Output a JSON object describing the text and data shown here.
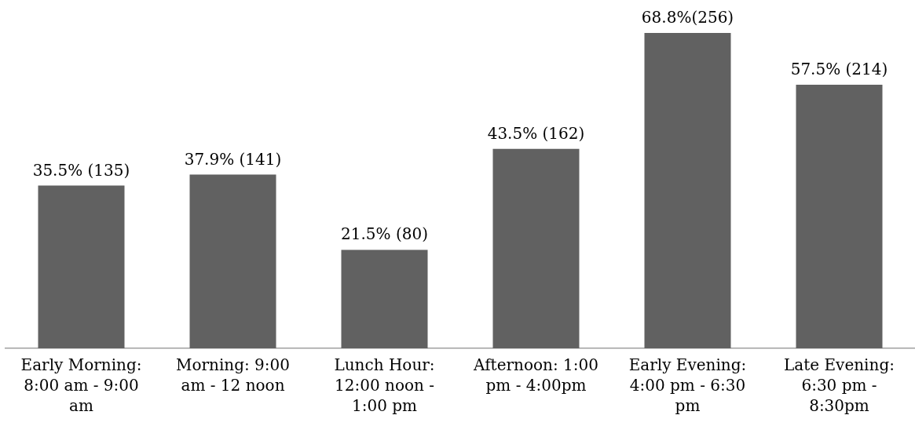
{
  "chart_data": {
    "type": "bar",
    "categories": [
      "Early Morning: 8:00 am - 9:00 am",
      "Morning: 9:00 am - 12 noon",
      "Lunch Hour: 12:00 noon - 1:00 pm",
      "Afternoon: 1:00 pm - 4:00pm",
      "Early Evening: 4:00 pm - 6:30 pm",
      "Late Evening: 6:30 pm - 8:30pm"
    ],
    "values": [
      35.5,
      37.9,
      21.5,
      43.5,
      68.8,
      57.5
    ],
    "value_labels": [
      "35.5% (135)",
      "37.9% (141)",
      "21.5% (80)",
      "43.5% (162)",
      "68.8%(256)",
      "57.5% (214)"
    ],
    "color": "#616161"
  }
}
